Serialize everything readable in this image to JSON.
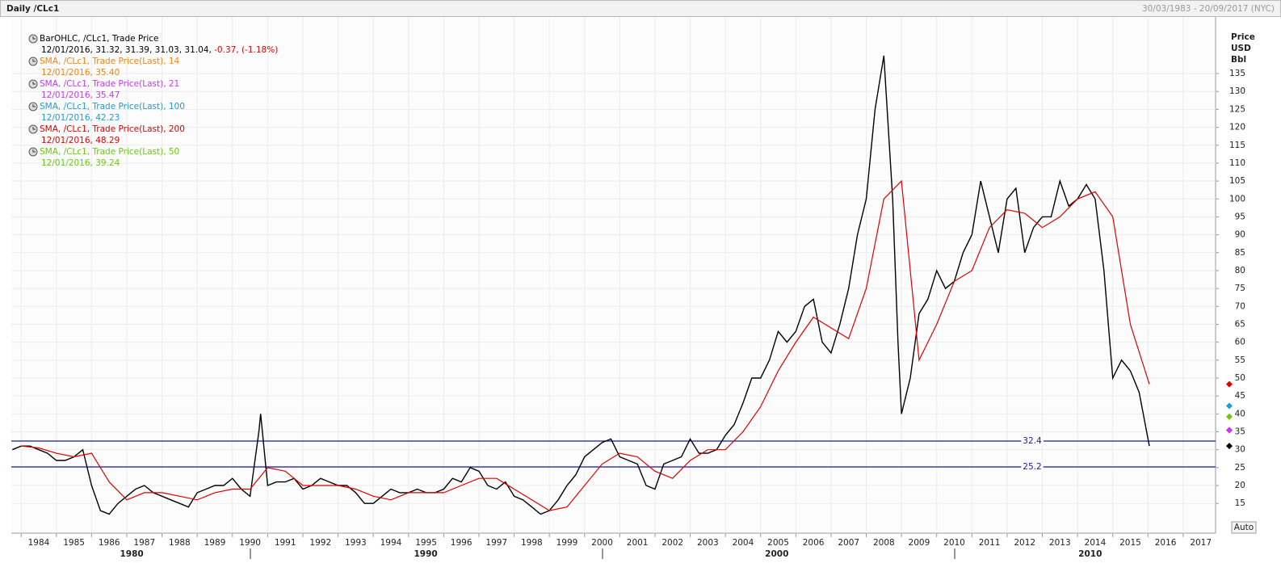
{
  "header": {
    "title": "Daily /CLc1",
    "range": "30/03/1983 - 20/09/2017 (NYC)"
  },
  "controls": {
    "auto": "Auto"
  },
  "chart_data": {
    "type": "line",
    "y_label": [
      "Price",
      "USD",
      "Bbl"
    ],
    "xlim": [
      1983.72,
      2017.92
    ],
    "ylim": [
      6.7,
      150.8
    ],
    "yticks": [
      15,
      20,
      25,
      30,
      35,
      40,
      45,
      50,
      55,
      60,
      65,
      70,
      75,
      80,
      85,
      90,
      95,
      100,
      105,
      110,
      115,
      120,
      125,
      130,
      135
    ],
    "xticks": [
      1984,
      1985,
      1986,
      1987,
      1988,
      1989,
      1990,
      1991,
      1992,
      1993,
      1994,
      1995,
      1996,
      1997,
      1998,
      1999,
      2000,
      2001,
      2002,
      2003,
      2004,
      2005,
      2006,
      2007,
      2008,
      2009,
      2010,
      2011,
      2012,
      2013,
      2014,
      2015,
      2016,
      2017
    ],
    "decade_ticks": [
      {
        "value": 1987.14,
        "label": "1980"
      },
      {
        "value": 1995.49,
        "label": "1990"
      },
      {
        "value": 2005.46,
        "label": "2000"
      },
      {
        "value": 2014.36,
        "label": "2010"
      }
    ],
    "grid": true,
    "hlines": [
      32.4,
      25.2
    ],
    "hline_color": "#1a1aa6",
    "series": [
      {
        "name": "BarOHLC, /CLc1, Trade Price",
        "color": "#000000",
        "last_label": "12/01/2016, 31.32, 31.39, 31.03, 31.04,",
        "change_label": " -0.37, (-1.18%)",
        "change_color": "#e00000",
        "last": 31.04,
        "x": [
          1983.75,
          1984,
          1984.25,
          1984.5,
          1984.75,
          1985,
          1985.25,
          1985.5,
          1985.75,
          1986,
          1986.25,
          1986.5,
          1986.75,
          1987,
          1987.25,
          1987.5,
          1987.75,
          1988,
          1988.25,
          1988.5,
          1988.75,
          1989,
          1989.25,
          1989.5,
          1989.75,
          1990,
          1990.25,
          1990.5,
          1990.75,
          1990.8,
          1991,
          1991.25,
          1991.5,
          1991.75,
          1992,
          1992.25,
          1992.5,
          1992.75,
          1993,
          1993.25,
          1993.5,
          1993.75,
          1994,
          1994.25,
          1994.5,
          1994.75,
          1995,
          1995.25,
          1995.5,
          1995.75,
          1996,
          1996.25,
          1996.5,
          1996.75,
          1997,
          1997.25,
          1997.5,
          1997.75,
          1998,
          1998.25,
          1998.5,
          1998.75,
          1999,
          1999.25,
          1999.5,
          1999.75,
          2000,
          2000.25,
          2000.5,
          2000.75,
          2001,
          2001.25,
          2001.5,
          2001.75,
          2002,
          2002.25,
          2002.5,
          2002.75,
          2003,
          2003.25,
          2003.5,
          2003.75,
          2004,
          2004.25,
          2004.5,
          2004.75,
          2005,
          2005.25,
          2005.5,
          2005.75,
          2006,
          2006.25,
          2006.5,
          2006.75,
          2007,
          2007.25,
          2007.5,
          2007.75,
          2008,
          2008.25,
          2008.5,
          2008.75,
          2008.9,
          2009,
          2009.25,
          2009.5,
          2009.75,
          2010,
          2010.25,
          2010.5,
          2010.75,
          2011,
          2011.25,
          2011.5,
          2011.75,
          2012,
          2012.25,
          2012.5,
          2012.75,
          2013,
          2013.25,
          2013.5,
          2013.75,
          2014,
          2014.25,
          2014.5,
          2014.75,
          2015,
          2015.25,
          2015.5,
          2015.75,
          2016.04
        ],
        "values": [
          30,
          31,
          31,
          30,
          29,
          27,
          27,
          28,
          30,
          20,
          13,
          12,
          15,
          17,
          19,
          20,
          18,
          17,
          16,
          15,
          14,
          18,
          19,
          20,
          20,
          22,
          19,
          17,
          35,
          40,
          20,
          21,
          21,
          22,
          19,
          20,
          22,
          21,
          20,
          20,
          18,
          15,
          15,
          17,
          19,
          18,
          18,
          19,
          18,
          18,
          19,
          22,
          21,
          25,
          24,
          20,
          19,
          21,
          17,
          16,
          14,
          12,
          13,
          16,
          20,
          23,
          28,
          30,
          32,
          33,
          28,
          27,
          26,
          20,
          19,
          26,
          27,
          28,
          33,
          29,
          29,
          30,
          34,
          37,
          43,
          50,
          50,
          55,
          63,
          60,
          63,
          70,
          72,
          60,
          57,
          65,
          75,
          90,
          100,
          125,
          140,
          100,
          60,
          40,
          50,
          68,
          72,
          80,
          75,
          77,
          85,
          90,
          105,
          95,
          85,
          100,
          103,
          85,
          92,
          95,
          95,
          105,
          98,
          100,
          104,
          100,
          80,
          50,
          55,
          52,
          46,
          31.04
        ]
      },
      {
        "name": "SMA, /CLc1, Trade Price(Last),  14",
        "color": "#ff8000",
        "last_label": "12/01/2016, 35.40",
        "last": 35.4
      },
      {
        "name": "SMA, /CLc1, Trade Price(Last),  21",
        "color": "#cc33ff",
        "last_label": "12/01/2016, 35.47",
        "last": 35.47
      },
      {
        "name": "SMA, /CLc1, Trade Price(Last),  100",
        "color": "#1e9bd7",
        "last_label": "12/01/2016, 42.23",
        "last": 42.23
      },
      {
        "name": "SMA, /CLc1, Trade Price(Last),  200",
        "color": "#e00000",
        "last_label": "12/01/2016, 48.29",
        "last": 48.29,
        "x": [
          1984,
          1984.5,
          1985,
          1985.5,
          1986,
          1986.5,
          1987,
          1987.5,
          1988,
          1988.5,
          1989,
          1989.5,
          1990,
          1990.5,
          1991,
          1991.5,
          1992,
          1992.5,
          1993,
          1993.5,
          1994,
          1994.5,
          1995,
          1995.5,
          1996,
          1996.5,
          1997,
          1997.5,
          1998,
          1998.5,
          1999,
          1999.5,
          2000,
          2000.5,
          2001,
          2001.5,
          2002,
          2002.5,
          2003,
          2003.5,
          2004,
          2004.5,
          2005,
          2005.5,
          2006,
          2006.5,
          2007,
          2007.5,
          2008,
          2008.5,
          2009,
          2009.5,
          2010,
          2010.5,
          2011,
          2011.5,
          2012,
          2012.5,
          2013,
          2013.5,
          2014,
          2014.5,
          2015,
          2015.5,
          2016.04
        ],
        "values": [
          31,
          30.5,
          29,
          28,
          29,
          21,
          16,
          18,
          18,
          17,
          16,
          18,
          19,
          19,
          25,
          24,
          20,
          20,
          20,
          19,
          17,
          16,
          18,
          18,
          18,
          20,
          22,
          22,
          19,
          16,
          13,
          14,
          20,
          26,
          29,
          28,
          24,
          22,
          27,
          30,
          30,
          35,
          42,
          52,
          60,
          67,
          64,
          61,
          75,
          100,
          105,
          55,
          65,
          77,
          80,
          92,
          97,
          96,
          92,
          95,
          100,
          102,
          95,
          65,
          48.29
        ]
      },
      {
        "name": "SMA, /CLc1, Trade Price(Last),  50",
        "color": "#66cc00",
        "last_label": "12/01/2016, 39.24",
        "last": 39.24
      }
    ]
  }
}
